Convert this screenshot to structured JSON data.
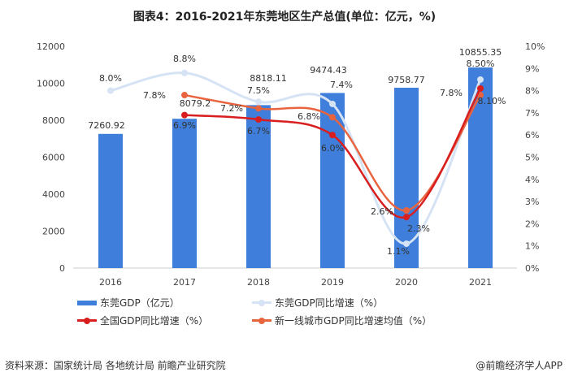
{
  "chart_data": {
    "type": "bar+line",
    "title": "图表4：2016-2021年东莞地区生产总值(单位：亿元，%)",
    "categories": [
      "2016",
      "2017",
      "2018",
      "2019",
      "2020",
      "2021"
    ],
    "left_axis": {
      "ylim": [
        0,
        12000
      ],
      "ticks": [
        "0",
        "2000",
        "4000",
        "6000",
        "8000",
        "10000",
        "12000"
      ]
    },
    "right_axis": {
      "ylim": [
        0,
        10
      ],
      "ticks": [
        "0%",
        "1%",
        "2%",
        "3%",
        "4%",
        "5%",
        "6%",
        "7%",
        "8%",
        "9%",
        "10%"
      ]
    },
    "series": [
      {
        "name": "东莞GDP（亿元）",
        "type": "bar",
        "axis": "left",
        "color": "#3f7fdb",
        "values": [
          7260.92,
          8079.2,
          8818.11,
          9474.43,
          9758.77,
          10855.35
        ],
        "labels": [
          "7260.92",
          "8079.2",
          "8818.11",
          "9474.43",
          "9758.77",
          "10855.35"
        ]
      },
      {
        "name": "东莞GDP同比增速（%）",
        "type": "line",
        "axis": "right",
        "color": "#d5e3f5",
        "values": [
          8.0,
          8.8,
          7.5,
          7.4,
          1.1,
          8.5
        ],
        "labels": [
          "8.0%",
          "8.8%",
          "7.5%",
          "7.4%",
          "1.1%",
          "8.50%"
        ]
      },
      {
        "name": "全国GDP同比增速（%）",
        "type": "line",
        "axis": "right",
        "color": "#d81e1e",
        "values": [
          null,
          6.9,
          6.7,
          6.0,
          2.3,
          8.1
        ],
        "labels": [
          "",
          "6.9%",
          "6.7%",
          "6.0%",
          "2.3%",
          "8.10%"
        ]
      },
      {
        "name": "新一线城市GDP同比增速均值（%）",
        "type": "line",
        "axis": "right",
        "color": "#e8643f",
        "values": [
          null,
          7.8,
          7.2,
          6.8,
          2.6,
          7.8
        ],
        "labels": [
          "",
          "7.8%",
          "7.2%",
          "6.8%",
          "2.6%",
          "7.8%"
        ]
      }
    ],
    "legend_position": "bottom"
  },
  "footer": {
    "source": "资料来源：国家统计局 各地统计局 前瞻产业研究院",
    "credit": "@前瞻经济学人APP"
  }
}
